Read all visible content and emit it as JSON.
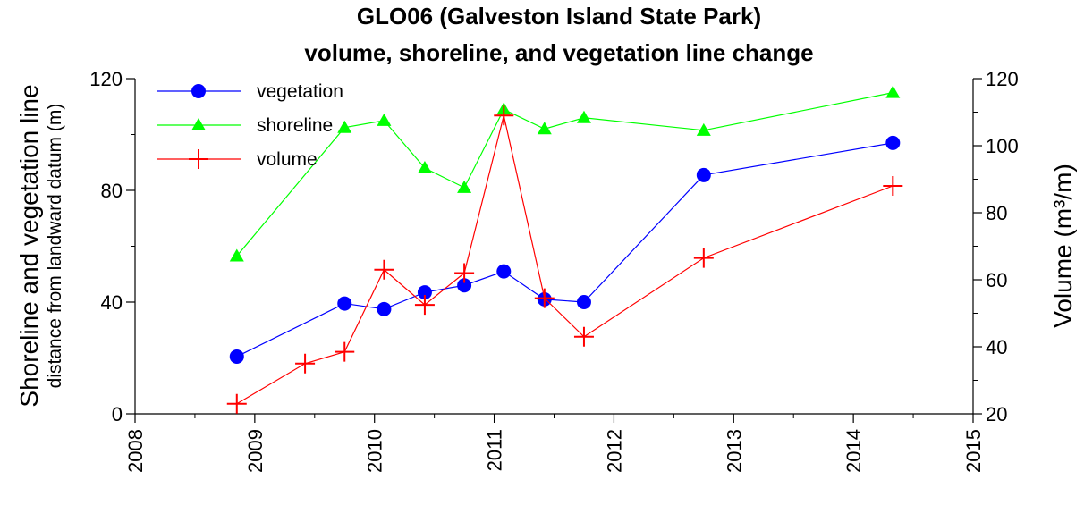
{
  "chart_data": {
    "type": "line",
    "title": [
      "GLO06 (Galveston Island State Park)",
      "volume, shoreline, and vegetation line change"
    ],
    "ylabel_left": [
      "Shoreline and vegetation line",
      "distance from landward datum (m)"
    ],
    "ylabel_right": "Volume (m³/m)",
    "xlabel": "",
    "xlim": [
      2008,
      2015
    ],
    "ylim_left": [
      0,
      120
    ],
    "ylim_right": [
      20,
      120
    ],
    "x_ticks": [
      2008,
      2009,
      2010,
      2011,
      2012,
      2013,
      2014,
      2015
    ],
    "y_ticks_left": [
      0,
      40,
      80,
      120
    ],
    "y_ticks_right": [
      20,
      40,
      60,
      80,
      100,
      120
    ],
    "grid": false,
    "legend_position": "top-left",
    "series": [
      {
        "name": "vegetation",
        "axis": "left",
        "color": "#0000ff",
        "marker": "circle",
        "x": [
          2008.85,
          2009.75,
          2010.08,
          2010.42,
          2010.75,
          2011.08,
          2011.42,
          2011.75,
          2012.75,
          2014.33
        ],
        "y": [
          20.5,
          39.5,
          37.5,
          43.5,
          46,
          51,
          41,
          40,
          85.5,
          97
        ]
      },
      {
        "name": "shoreline",
        "axis": "left",
        "color": "#00ff00",
        "marker": "triangle",
        "x": [
          2008.85,
          2009.75,
          2010.08,
          2010.42,
          2010.75,
          2011.08,
          2011.42,
          2011.75,
          2012.75,
          2014.33
        ],
        "y": [
          56.5,
          102.5,
          105,
          88,
          81,
          109,
          102,
          106,
          101.5,
          115
        ]
      },
      {
        "name": "volume",
        "axis": "right",
        "color": "#ff0000",
        "marker": "plus",
        "x": [
          2008.85,
          2009.42,
          2009.75,
          2010.08,
          2010.42,
          2010.75,
          2011.08,
          2011.42,
          2011.75,
          2012.75,
          2014.33
        ],
        "y": [
          23,
          35,
          38.5,
          63,
          52.5,
          62,
          109,
          54.5,
          43,
          66.5,
          88
        ]
      }
    ]
  }
}
